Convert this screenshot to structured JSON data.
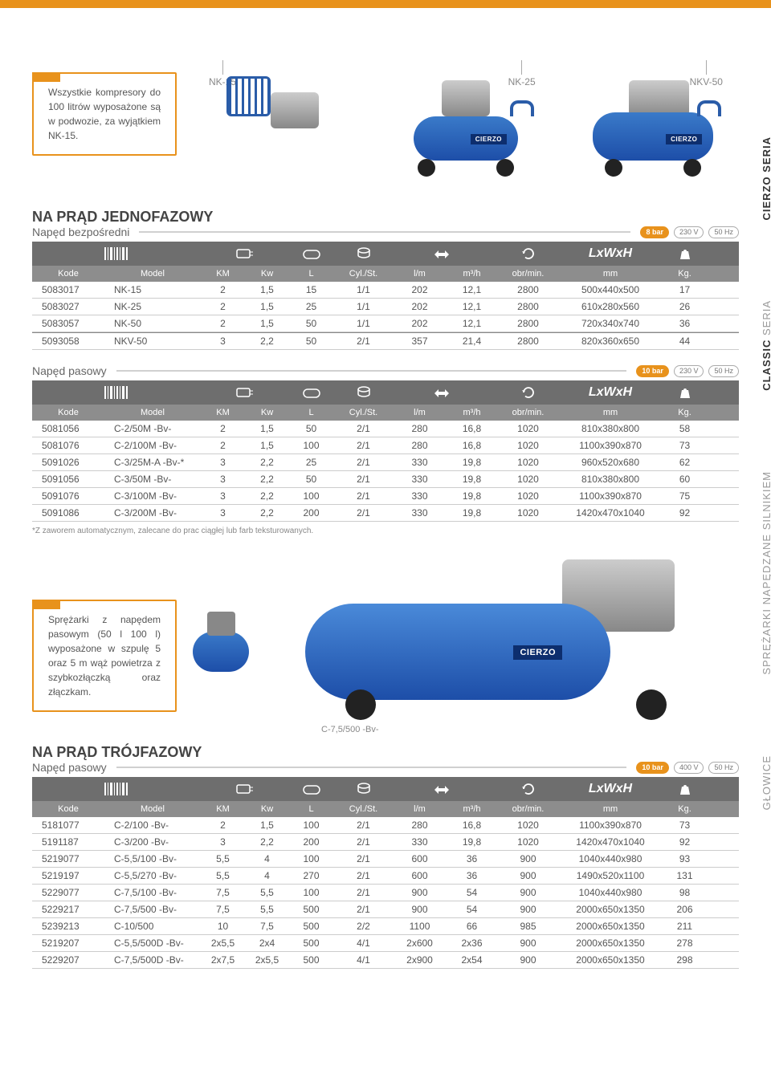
{
  "top_note": "Wszystkie kompresory do 100 litrów wyposażone są w podwozie, za wyjątkiem NK-15.",
  "products": {
    "p1": "NK-15",
    "p2": "NK-25",
    "p3": "NKV-50"
  },
  "brand": "CIERZO",
  "side_tabs": {
    "t1": {
      "brand": "CIERZO",
      "suffix": "SERIA"
    },
    "t2": {
      "brand": "CLASSIC",
      "suffix": "SERIA"
    },
    "t3": "SPRĘŻARKI NAPĘDZANE SILNIKIEM",
    "t4": "GŁOWICE"
  },
  "section1": {
    "title": "NA PRĄD JEDNOFAZOWY",
    "sub": "Napęd bezpośredni",
    "bar": "8 bar",
    "volt": "230 V",
    "hz": "50 Hz",
    "lxwxh": "LxWxH",
    "cols": [
      "Kode",
      "Model",
      "KM",
      "Kw",
      "L",
      "Cyl./St.",
      "l/m",
      "m³/h",
      "obr/min.",
      "mm",
      "Kg."
    ],
    "rows": [
      [
        "5083017",
        "NK-15",
        "2",
        "1,5",
        "15",
        "1/1",
        "202",
        "12,1",
        "2800",
        "500x440x500",
        "17"
      ],
      [
        "5083027",
        "NK-25",
        "2",
        "1,5",
        "25",
        "1/1",
        "202",
        "12,1",
        "2800",
        "610x280x560",
        "26"
      ],
      [
        "5083057",
        "NK-50",
        "2",
        "1,5",
        "50",
        "1/1",
        "202",
        "12,1",
        "2800",
        "720x340x740",
        "36"
      ],
      [
        "5093058",
        "NKV-50",
        "3",
        "2,2",
        "50",
        "2/1",
        "357",
        "21,4",
        "2800",
        "820x360x650",
        "44"
      ]
    ]
  },
  "section2": {
    "sub": "Napęd pasowy",
    "bar": "10 bar",
    "volt": "230 V",
    "hz": "50 Hz",
    "cols": [
      "Kode",
      "Model",
      "KM",
      "Kw",
      "L",
      "Cyl./St.",
      "l/m",
      "m³/h",
      "obr/min.",
      "mm",
      "Kg."
    ],
    "rows": [
      [
        "5081056",
        "C-2/50M -Bv-",
        "2",
        "1,5",
        "50",
        "2/1",
        "280",
        "16,8",
        "1020",
        "810x380x800",
        "58"
      ],
      [
        "5081076",
        "C-2/100M -Bv-",
        "2",
        "1,5",
        "100",
        "2/1",
        "280",
        "16,8",
        "1020",
        "1100x390x870",
        "73"
      ],
      [
        "5091026",
        "C-3/25M-A -Bv-*",
        "3",
        "2,2",
        "25",
        "2/1",
        "330",
        "19,8",
        "1020",
        "960x520x680",
        "62"
      ],
      [
        "5091056",
        "C-3/50M -Bv-",
        "3",
        "2,2",
        "50",
        "2/1",
        "330",
        "19,8",
        "1020",
        "810x380x800",
        "60"
      ],
      [
        "5091076",
        "C-3/100M -Bv-",
        "3",
        "2,2",
        "100",
        "2/1",
        "330",
        "19,8",
        "1020",
        "1100x390x870",
        "75"
      ],
      [
        "5091086",
        "C-3/200M -Bv-",
        "3",
        "2,2",
        "200",
        "2/1",
        "330",
        "19,8",
        "1020",
        "1420x470x1040",
        "92"
      ]
    ],
    "footnote": "*Z zaworem automatycznym, zalecane do prac ciągłej lub farb teksturowanych."
  },
  "mid_note": "Sprężarki z napędem pasowym (50 l 100 l) wyposażone w szpulę 5 oraz 5 m wąż powietrza z szybkozłączką oraz złączkam.",
  "mid_callout": "C-7,5/500 -Bv-",
  "section3": {
    "title": "NA PRĄD TRÓJFAZOWY",
    "sub": "Napęd pasowy",
    "bar": "10 bar",
    "volt": "400 V",
    "hz": "50 Hz",
    "cols": [
      "Kode",
      "Model",
      "KM",
      "Kw",
      "L",
      "Cyl./St.",
      "l/m",
      "m³/h",
      "obr/min.",
      "mm",
      "Kg."
    ],
    "rows": [
      [
        "5181077",
        "C-2/100 -Bv-",
        "2",
        "1,5",
        "100",
        "2/1",
        "280",
        "16,8",
        "1020",
        "1100x390x870",
        "73"
      ],
      [
        "5191187",
        "C-3/200 -Bv-",
        "3",
        "2,2",
        "200",
        "2/1",
        "330",
        "19,8",
        "1020",
        "1420x470x1040",
        "92"
      ],
      [
        "5219077",
        "C-5,5/100 -Bv-",
        "5,5",
        "4",
        "100",
        "2/1",
        "600",
        "36",
        "900",
        "1040x440x980",
        "93"
      ],
      [
        "5219197",
        "C-5,5/270 -Bv-",
        "5,5",
        "4",
        "270",
        "2/1",
        "600",
        "36",
        "900",
        "1490x520x1100",
        "131"
      ],
      [
        "5229077",
        "C-7,5/100 -Bv-",
        "7,5",
        "5,5",
        "100",
        "2/1",
        "900",
        "54",
        "900",
        "1040x440x980",
        "98"
      ],
      [
        "5229217",
        "C-7,5/500 -Bv-",
        "7,5",
        "5,5",
        "500",
        "2/1",
        "900",
        "54",
        "900",
        "2000x650x1350",
        "206"
      ],
      [
        "5239213",
        "C-10/500",
        "10",
        "7,5",
        "500",
        "2/2",
        "1100",
        "66",
        "985",
        "2000x650x1350",
        "211"
      ],
      [
        "5219207",
        "C-5,5/500D -Bv-",
        "2x5,5",
        "2x4",
        "500",
        "4/1",
        "2x600",
        "2x36",
        "900",
        "2000x650x1350",
        "278"
      ],
      [
        "5229207",
        "C-7,5/500D -Bv-",
        "2x7,5",
        "2x5,5",
        "500",
        "4/1",
        "2x900",
        "2x54",
        "900",
        "2000x650x1350",
        "298"
      ]
    ]
  },
  "colors": {
    "accent": "#e8921c",
    "header_dark": "#6e6e6e",
    "header_light": "#8d8d8d",
    "blue_dark": "#1d4ea8",
    "blue_light": "#4a8ad9"
  }
}
